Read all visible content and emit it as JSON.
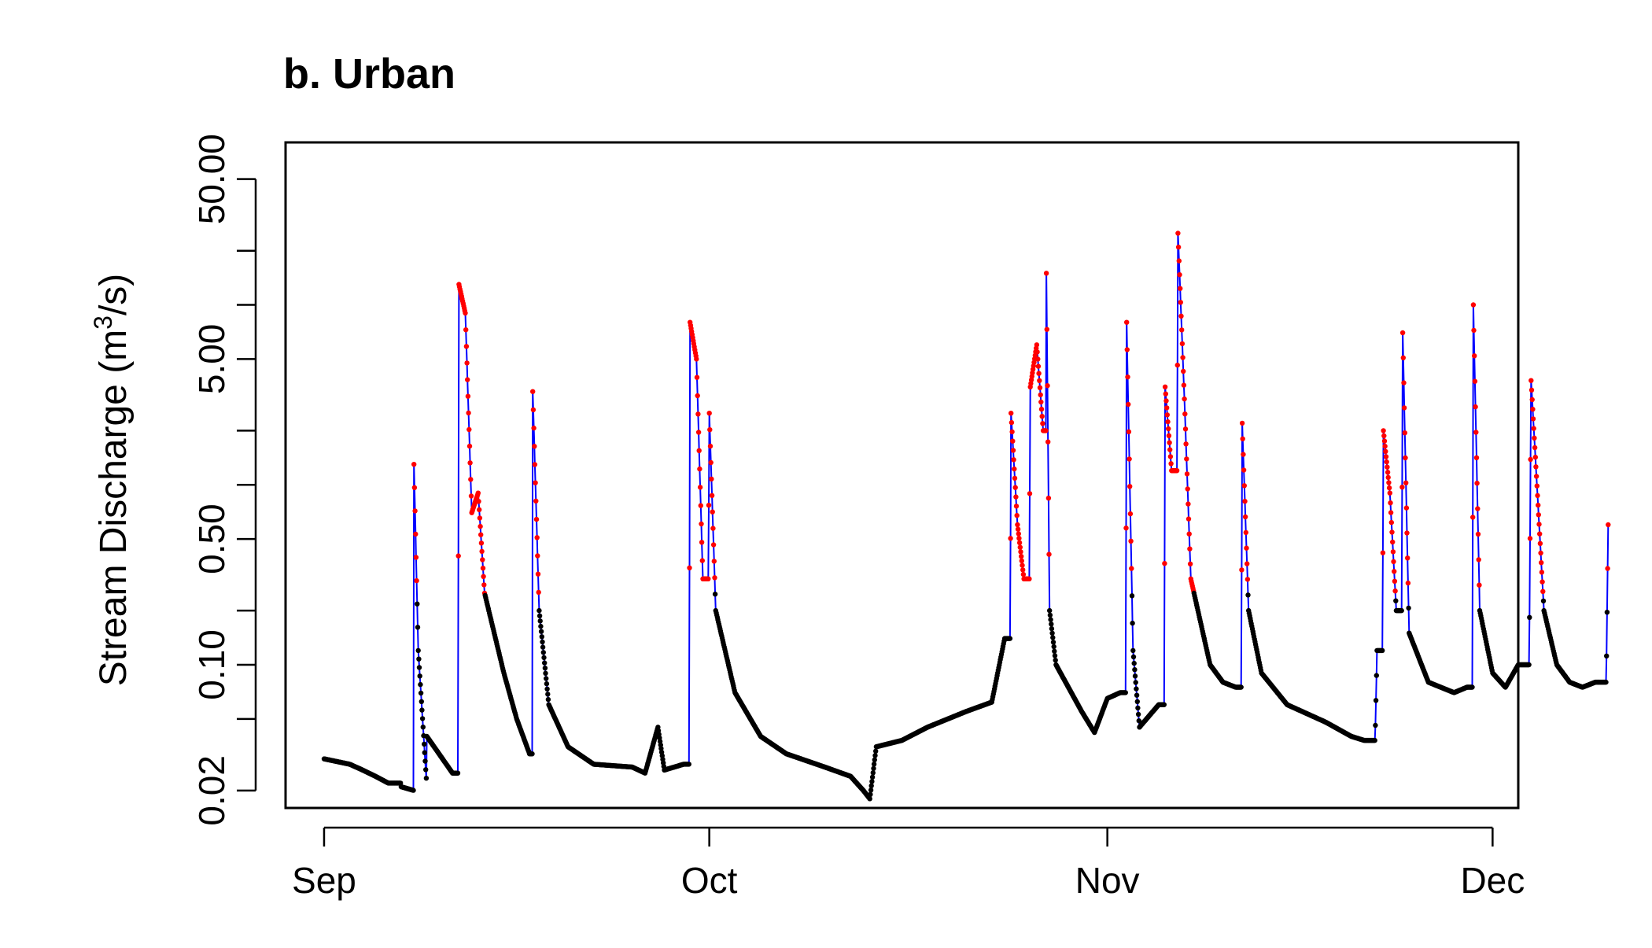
{
  "chart_data": {
    "type": "line",
    "title": "b. Urban",
    "ylabel_main": "Stream Discharge (m",
    "ylabel_sup": "3",
    "ylabel_end": "/s)",
    "xlabel": "",
    "y_scale": "log",
    "ylim": [
      0.016,
      80
    ],
    "xlim": [
      "2023-08-29",
      "2023-12-03"
    ],
    "y_ticks_labeled": [
      "0.02",
      "0.10",
      "0.50",
      "5.00",
      "50.00"
    ],
    "y_ticks_labeled_values": [
      0.02,
      0.1,
      0.5,
      5,
      50
    ],
    "y_ticks_minor_values": [
      0.05,
      0.2,
      1,
      2,
      10,
      20
    ],
    "x_ticks": [
      {
        "label": "Sep",
        "date": "2023-09-01"
      },
      {
        "label": "Oct",
        "date": "2023-10-01"
      },
      {
        "label": "Nov",
        "date": "2023-11-01"
      },
      {
        "label": "Dec",
        "date": "2023-12-01"
      }
    ],
    "threshold": 0.25,
    "colors": {
      "line": "#0000ff",
      "below": "#000000",
      "above": "#ff0000"
    },
    "series": [
      {
        "values_key_points": [
          [
            "2023-09-01",
            0.03
          ],
          [
            "2023-09-03",
            0.028
          ],
          [
            "2023-09-04",
            0.026
          ],
          [
            "2023-09-05",
            0.024
          ],
          [
            "2023-09-06",
            0.022
          ],
          [
            "2023-09-07",
            0.022
          ],
          [
            "2023-09-08",
            0.02
          ],
          [
            "2023-09-09",
            0.021
          ],
          [
            "2023-09-07",
            0.021
          ],
          [
            "2023-09-08",
            1.3
          ],
          [
            "2023-09-08T08",
            0.12
          ],
          [
            "2023-09-09",
            0.04
          ],
          [
            "2023-09-11",
            0.025
          ],
          [
            "2023-09-11T12",
            13
          ],
          [
            "2023-09-12",
            9
          ],
          [
            "2023-09-12T12",
            0.7
          ],
          [
            "2023-09-13",
            0.9
          ],
          [
            "2023-09-13T12",
            0.25
          ],
          [
            "2023-09-15",
            0.09
          ],
          [
            "2023-09-16",
            0.05
          ],
          [
            "2023-09-17",
            0.032
          ],
          [
            "2023-09-17T06",
            3.3
          ],
          [
            "2023-09-17T18",
            0.2
          ],
          [
            "2023-09-18T12",
            0.06
          ],
          [
            "2023-09-20",
            0.035
          ],
          [
            "2023-09-22",
            0.028
          ],
          [
            "2023-09-25",
            0.027
          ],
          [
            "2023-09-26",
            0.025
          ],
          [
            "2023-09-27",
            0.045
          ],
          [
            "2023-09-27T12",
            0.026
          ],
          [
            "2023-09-29",
            0.028
          ],
          [
            "2023-09-29T12",
            8
          ],
          [
            "2023-09-30",
            5
          ],
          [
            "2023-09-30T12",
            0.3
          ],
          [
            "2023-10-01",
            2.5
          ],
          [
            "2023-10-01T12",
            0.2
          ],
          [
            "2023-10-03",
            0.07
          ],
          [
            "2023-10-05",
            0.04
          ],
          [
            "2023-10-07",
            0.032
          ],
          [
            "2023-10-10",
            0.027
          ],
          [
            "2023-10-12",
            0.024
          ],
          [
            "2023-10-13",
            0.02
          ],
          [
            "2023-10-13T12",
            0.018
          ],
          [
            "2023-10-14",
            0.035
          ],
          [
            "2023-10-16",
            0.038
          ],
          [
            "2023-10-18",
            0.045
          ],
          [
            "2023-10-21",
            0.055
          ],
          [
            "2023-10-23",
            0.062
          ],
          [
            "2023-10-24",
            0.14
          ],
          [
            "2023-10-24T12",
            2.5
          ],
          [
            "2023-10-25",
            0.6
          ],
          [
            "2023-10-25T12",
            0.3
          ],
          [
            "2023-10-26",
            3.5
          ],
          [
            "2023-10-26T12",
            6
          ],
          [
            "2023-10-27",
            2
          ],
          [
            "2023-10-27T06",
            15
          ],
          [
            "2023-10-27T12",
            0.2
          ],
          [
            "2023-10-28",
            0.1
          ],
          [
            "2023-10-30",
            0.055
          ],
          [
            "2023-10-31",
            0.042
          ],
          [
            "2023-11-01",
            0.065
          ],
          [
            "2023-11-02",
            0.07
          ],
          [
            "2023-11-02T12",
            8
          ],
          [
            "2023-11-03",
            0.12
          ],
          [
            "2023-11-03T12",
            0.045
          ],
          [
            "2023-11-05",
            0.06
          ],
          [
            "2023-11-05T12",
            3.5
          ],
          [
            "2023-11-06",
            1.2
          ],
          [
            "2023-11-06T12",
            25
          ],
          [
            "2023-11-07",
            3
          ],
          [
            "2023-11-07T12",
            0.3
          ],
          [
            "2023-11-09",
            0.1
          ],
          [
            "2023-11-10",
            0.08
          ],
          [
            "2023-11-11",
            0.075
          ],
          [
            "2023-11-11T12",
            2.2
          ],
          [
            "2023-11-12",
            0.2
          ],
          [
            "2023-11-13",
            0.09
          ],
          [
            "2023-11-15",
            0.06
          ],
          [
            "2023-11-18",
            0.048
          ],
          [
            "2023-11-20",
            0.04
          ],
          [
            "2023-11-21",
            0.038
          ],
          [
            "2023-11-22",
            0.12
          ],
          [
            "2023-11-22T12",
            2
          ],
          [
            "2023-11-23",
            0.9
          ],
          [
            "2023-11-23T12",
            0.2
          ],
          [
            "2023-11-24",
            7
          ],
          [
            "2023-11-24T12",
            0.15
          ],
          [
            "2023-11-26",
            0.08
          ],
          [
            "2023-11-28",
            0.07
          ],
          [
            "2023-11-29",
            0.075
          ],
          [
            "2023-11-29T12",
            10
          ],
          [
            "2023-11-30",
            0.2
          ],
          [
            "2023-12-01",
            0.09
          ],
          [
            "2023-12-02",
            0.075
          ],
          [
            "2023-12-03",
            0.1
          ],
          [
            "2023-12-04",
            3.8
          ],
          [
            "2023-12-05",
            0.2
          ],
          [
            "2023-12-06",
            0.1
          ],
          [
            "2023-12-07",
            0.08
          ],
          [
            "2023-12-08",
            0.075
          ],
          [
            "2023-12-09",
            0.08
          ],
          [
            "2023-12-10",
            0.6
          ]
        ]
      }
    ]
  }
}
